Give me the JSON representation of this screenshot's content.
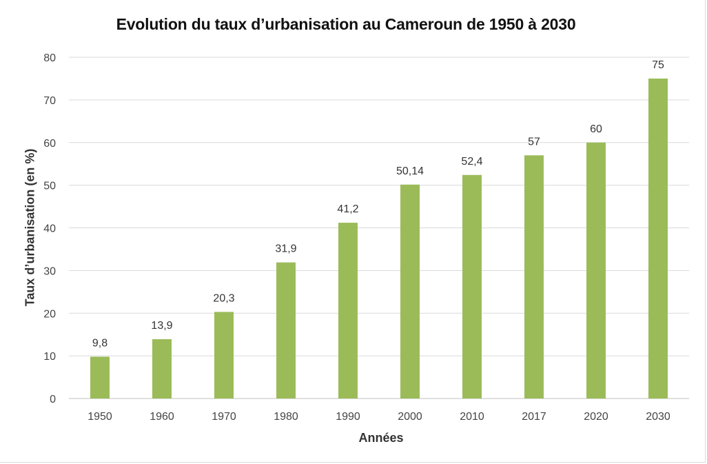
{
  "chart_data": {
    "type": "bar",
    "title": "Evolution du taux d’urbanisation au Cameroun de 1950 à 2030",
    "xlabel": "Années",
    "ylabel": "Taux d’urbanisation (en %)",
    "categories": [
      "1950",
      "1960",
      "1970",
      "1980",
      "1990",
      "2000",
      "2010",
      "2017",
      "2020",
      "2030"
    ],
    "values": [
      9.8,
      13.9,
      20.3,
      31.9,
      41.2,
      50.14,
      52.4,
      57,
      60,
      75
    ],
    "data_labels": [
      "9,8",
      "13,9",
      "20,3",
      "31,9",
      "41,2",
      "50,14",
      "52,4",
      "57",
      "60",
      "75"
    ],
    "ylim": [
      0,
      80
    ],
    "yticks": [
      0,
      10,
      20,
      30,
      40,
      50,
      60,
      70,
      80
    ],
    "grid": true,
    "legend": "none",
    "bar_color": "#9bbb59",
    "grid_color": "#d9d9d9"
  }
}
